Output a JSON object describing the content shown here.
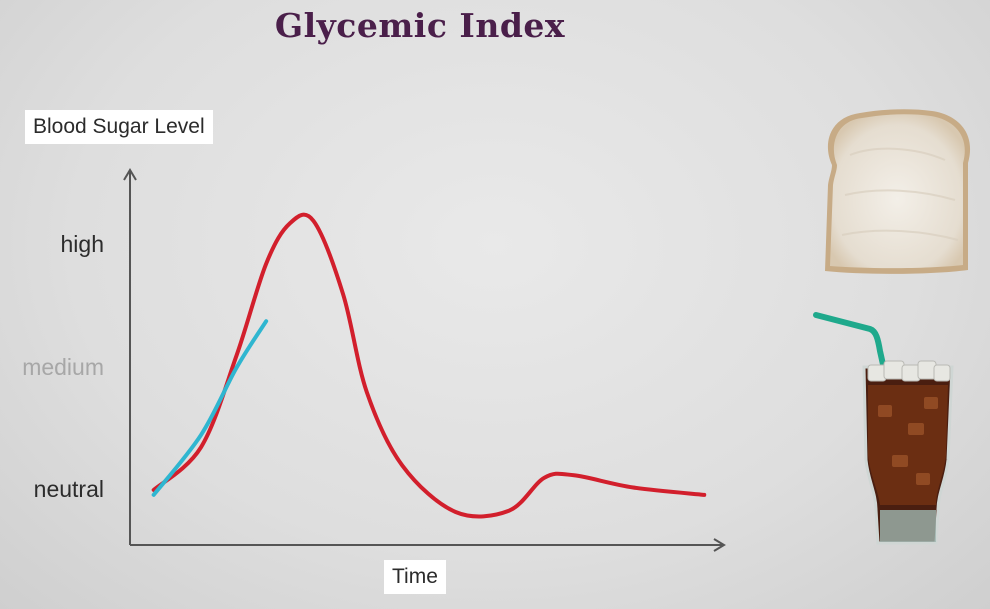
{
  "title": "Glycemic Index",
  "colors": {
    "title": "#4a1f4a",
    "high_gi_series": "#d21f2c",
    "low_gi_series": "#2fb6d0",
    "axis": "#555555",
    "straw": "#1fa98c"
  },
  "icons": [
    "bread-slice-icon",
    "cola-glass-icon"
  ],
  "chart_data": {
    "type": "line",
    "ylabel": "Blood Sugar Level",
    "xlabel": "Time",
    "y_ticks": [
      {
        "label": "high",
        "value": 2,
        "muted": false
      },
      {
        "label": "medium",
        "value": 1,
        "muted": true
      },
      {
        "label": "neutral",
        "value": 0,
        "muted": false
      }
    ],
    "ylim": [
      -0.45,
      2.6
    ],
    "xlim": [
      0,
      10
    ],
    "grid": false,
    "legend": "none",
    "series": [
      {
        "color": "#d21f2c",
        "x": [
          0.4,
          1.2,
          1.8,
          2.3,
          2.7,
          3.1,
          3.6,
          4.0,
          4.6,
          5.5,
          6.4,
          7.0,
          7.5,
          8.5,
          9.7
        ],
        "y": [
          0.0,
          0.35,
          1.1,
          1.85,
          2.18,
          2.2,
          1.6,
          0.8,
          0.2,
          -0.18,
          -0.17,
          0.1,
          0.12,
          0.02,
          -0.04
        ]
      },
      {
        "color": "#2fb6d0",
        "x": [
          0.4,
          1.2,
          1.8,
          2.3
        ],
        "y": [
          -0.04,
          0.45,
          1.0,
          1.38
        ]
      }
    ]
  }
}
